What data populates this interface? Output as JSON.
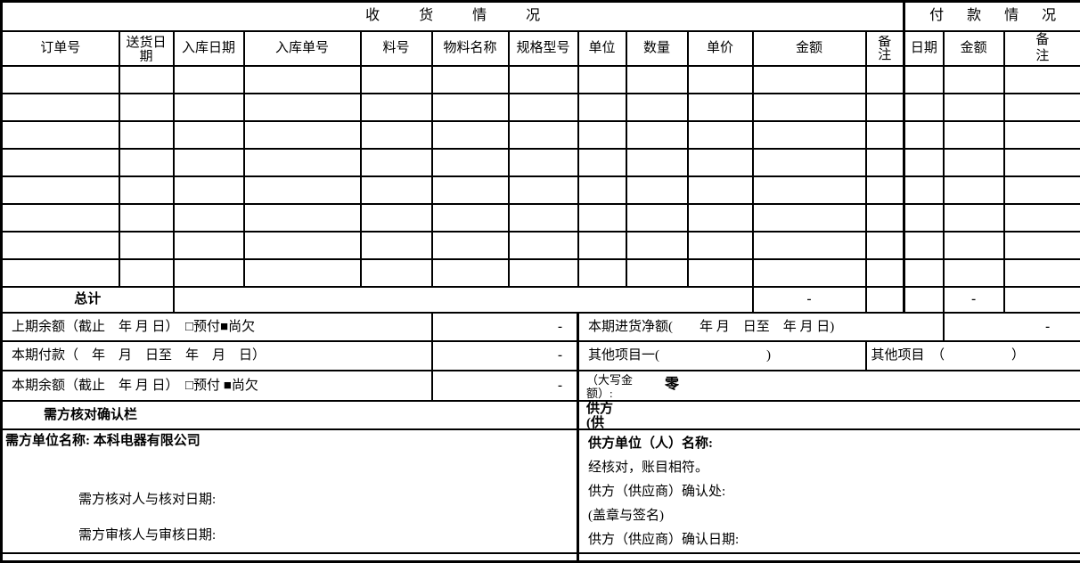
{
  "form": {
    "sections": {
      "receiving": "收货情况",
      "payment": "付款情况"
    },
    "columns": [
      "订单号",
      "送货日期",
      "入库日期",
      "入库单号",
      "料号",
      "物料名称",
      "规格型号",
      "单位",
      "数量",
      "单价",
      "金额",
      "备注",
      "日期",
      "金额",
      "备　注"
    ],
    "empty_row_count": 8,
    "total": {
      "label": "总计",
      "receive_amount": "-",
      "pay_amount": "-"
    },
    "summary": {
      "prev_balance_label": "上期余额（截止　年 月 日）　□预付■尚欠",
      "prev_balance_value": "-",
      "net_purchase_label": "本期进货净额(　　年 月　日至　年 月 日)",
      "net_purchase_value": "-",
      "payment_label": "本期付款（　年　月　日至　年　月　日）",
      "payment_value": "-",
      "other_item1_label": "其他项目一(　　　　　　　　)",
      "other_item2_label": "其他项目　（　　　　　）",
      "balance_label": "本期余额（截止　年 月 日）　□预付 ■尚欠",
      "balance_value": "-",
      "amount_words_label": "（大写金额）:",
      "amount_words_value": "零"
    },
    "confirmation": {
      "buyer_bar": "需方核对确认栏",
      "supplier_bar_line1": "供方",
      "supplier_bar_line2": "(供",
      "buyer_name": "需方单位名称: 本科电器有限公司",
      "buyer_check": "需方核对人与核对日期:",
      "buyer_audit": "需方审核人与审核日期:",
      "supplier_name": "供方单位（人）名称:",
      "checked_note": "经核对，账目相符。",
      "supplier_confirm": "供方（供应商）确认处:",
      "seal_note": "(盖章与签名)",
      "supplier_date": "供方（供应商）确认日期:"
    }
  }
}
